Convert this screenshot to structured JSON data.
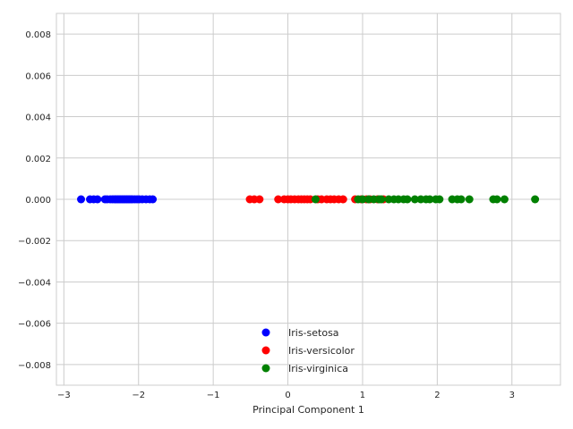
{
  "chart_data": {
    "type": "scatter",
    "title": "",
    "xlabel": "Principal Component 1",
    "ylabel": "",
    "xlim": [
      -3.1,
      3.65
    ],
    "ylim": [
      -0.009,
      0.009
    ],
    "x_ticks": [
      -3,
      -2,
      -1,
      0,
      1,
      2,
      3
    ],
    "y_ticks": [
      -0.008,
      -0.006,
      -0.004,
      -0.002,
      0.0,
      0.002,
      0.004,
      0.006,
      0.008
    ],
    "x_tick_labels": [
      "−3",
      "−2",
      "−1",
      "0",
      "1",
      "2",
      "3"
    ],
    "y_tick_labels": [
      "−0.008",
      "−0.006",
      "−0.004",
      "−0.002",
      "0.000",
      "0.002",
      "0.004",
      "0.006",
      "0.008"
    ],
    "grid": true,
    "legend_position": "lower-center",
    "series": [
      {
        "name": "Iris-setosa",
        "color": "#0000ff",
        "x": [
          -2.77,
          -2.65,
          -2.6,
          -2.55,
          -2.45,
          -2.42,
          -2.38,
          -2.35,
          -2.32,
          -2.3,
          -2.28,
          -2.26,
          -2.24,
          -2.22,
          -2.2,
          -2.18,
          -2.16,
          -2.14,
          -2.12,
          -2.1,
          -2.08,
          -2.05,
          -2.02,
          -1.99,
          -1.95,
          -1.9,
          -1.85,
          -1.81
        ],
        "y": [
          0,
          0,
          0,
          0,
          0,
          0,
          0,
          0,
          0,
          0,
          0,
          0,
          0,
          0,
          0,
          0,
          0,
          0,
          0,
          0,
          0,
          0,
          0,
          0,
          0,
          0,
          0,
          0
        ]
      },
      {
        "name": "Iris-versicolor",
        "color": "#ff0000",
        "x": [
          -0.51,
          -0.45,
          -0.38,
          -0.13,
          -0.05,
          0.0,
          0.04,
          0.09,
          0.14,
          0.18,
          0.22,
          0.26,
          0.3,
          0.4,
          0.45,
          0.52,
          0.57,
          0.62,
          0.68,
          0.74,
          0.9,
          0.98,
          1.05,
          1.1,
          1.2,
          1.28
        ],
        "y": [
          0,
          0,
          0,
          0,
          0,
          0,
          0,
          0,
          0,
          0,
          0,
          0,
          0,
          0,
          0,
          0,
          0,
          0,
          0,
          0,
          0,
          0,
          0,
          0,
          0,
          0
        ]
      },
      {
        "name": "Iris-virginica",
        "color": "#008000",
        "x": [
          0.37,
          0.94,
          1.0,
          1.08,
          1.15,
          1.22,
          1.25,
          1.35,
          1.42,
          1.48,
          1.55,
          1.6,
          1.7,
          1.78,
          1.85,
          1.9,
          1.98,
          2.03,
          2.2,
          2.27,
          2.32,
          2.43,
          2.75,
          2.8,
          2.9,
          3.31
        ],
        "y": [
          0,
          0,
          0,
          0,
          0,
          0,
          0,
          0,
          0,
          0,
          0,
          0,
          0,
          0,
          0,
          0,
          0,
          0,
          0,
          0,
          0,
          0,
          0,
          0,
          0,
          0
        ]
      }
    ]
  }
}
